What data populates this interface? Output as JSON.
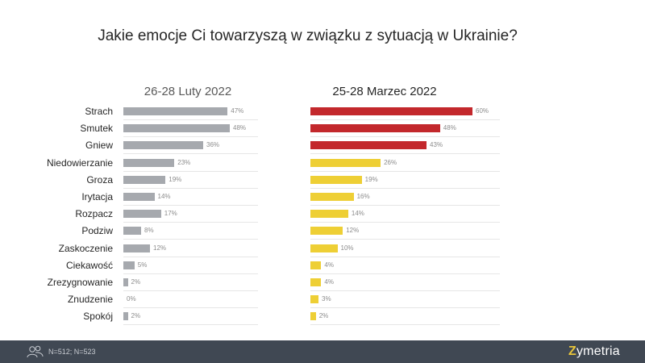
{
  "chart_data": {
    "type": "bar",
    "orientation": "horizontal",
    "title": "Jakie emocje Ci towarzyszą w związku z sytuacją w Ukrainie?",
    "categories": [
      "Strach",
      "Smutek",
      "Gniew",
      "Niedowierzanie",
      "Groza",
      "Irytacja",
      "Rozpacz",
      "Podziw",
      "Zaskoczenie",
      "Ciekawość",
      "Zrezygnowanie",
      "Znudzenie",
      "Spokój"
    ],
    "series": [
      {
        "name": "26-28 Luty 2022",
        "values": [
          47,
          48,
          36,
          23,
          19,
          14,
          17,
          8,
          12,
          5,
          2,
          0,
          2
        ],
        "labels": [
          "47%",
          "48%",
          "36%",
          "23%",
          "19%",
          "14%",
          "17%",
          "8%",
          "12%",
          "5%",
          "2%",
          "0%",
          "2%"
        ],
        "color": "#a6a9ae"
      },
      {
        "name": "25-28 Marzec 2022",
        "values": [
          60,
          48,
          43,
          26,
          19,
          16,
          14,
          12,
          10,
          4,
          4,
          3,
          2
        ],
        "labels": [
          "60%",
          "48%",
          "43%",
          "26%",
          "19%",
          "16%",
          "14%",
          "12%",
          "10%",
          "4%",
          "4%",
          "3%",
          "2%"
        ],
        "colors": [
          "#c3282c",
          "#c3282c",
          "#c3282c",
          "#eecf35",
          "#eecf35",
          "#eecf35",
          "#eecf35",
          "#eecf35",
          "#eecf35",
          "#eecf35",
          "#eecf35",
          "#eecf35",
          "#eecf35"
        ]
      }
    ],
    "xlim": [
      0,
      60
    ]
  },
  "footer": {
    "note": "N=512; N=523",
    "icon": "people-icon",
    "brand_initial": "Z",
    "brand_rest": "ymetria",
    "bg_color": "#404853",
    "brand_color": "#e8c53a"
  }
}
